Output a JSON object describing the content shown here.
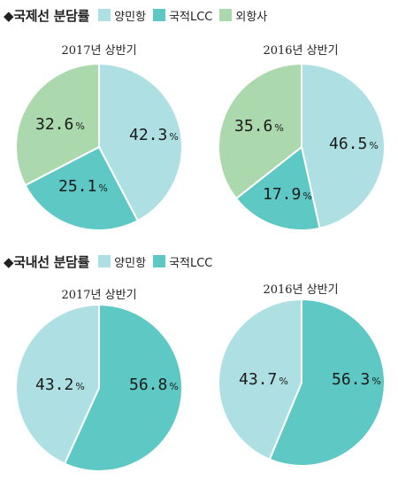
{
  "sections": [
    {
      "title": "◆국제선 분담률",
      "legend": [
        {
          "label": "양민항",
          "color": "#aee0e3"
        },
        {
          "label": "국적LCC",
          "color": "#5ec8c4"
        },
        {
          "label": "외항사",
          "color": "#acd8ad"
        }
      ]
    },
    {
      "title": "◆국내선 분담률",
      "legend": [
        {
          "label": "양민항",
          "color": "#aee0e3"
        },
        {
          "label": "국적LCC",
          "color": "#5ec8c4"
        }
      ]
    }
  ],
  "chart_data": [
    {
      "type": "pie",
      "title": "2017년 상반기",
      "slices": [
        {
          "category": "양민항",
          "value": 42.3,
          "color": "#aee0e3"
        },
        {
          "category": "국적LCC",
          "value": 25.1,
          "color": "#5ec8c4"
        },
        {
          "category": "외항사",
          "value": 32.6,
          "color": "#acd8ad"
        }
      ],
      "unit": "%"
    },
    {
      "type": "pie",
      "title": "2016년 상반기",
      "slices": [
        {
          "category": "양민항",
          "value": 46.5,
          "color": "#aee0e3"
        },
        {
          "category": "국적LCC",
          "value": 17.9,
          "color": "#5ec8c4"
        },
        {
          "category": "외항사",
          "value": 35.6,
          "color": "#acd8ad"
        }
      ],
      "unit": "%"
    },
    {
      "type": "pie",
      "title": "2017년 상반기",
      "slices": [
        {
          "category": "국적LCC",
          "value": 56.8,
          "color": "#5ec8c4"
        },
        {
          "category": "양민항",
          "value": 43.2,
          "color": "#aee0e3"
        }
      ],
      "unit": "%"
    },
    {
      "type": "pie",
      "title": "2016년 상반기",
      "slices": [
        {
          "category": "국적LCC",
          "value": 56.3,
          "color": "#5ec8c4"
        },
        {
          "category": "양민항",
          "value": 43.7,
          "color": "#aee0e3"
        }
      ],
      "unit": "%"
    }
  ]
}
